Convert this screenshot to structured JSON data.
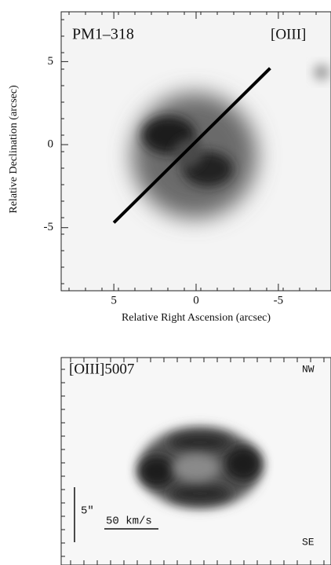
{
  "top_panel": {
    "object": "PM1–318",
    "filter": "[OIII]",
    "x_label": "Relative Right Ascension (arcsec)",
    "y_label": "Relative Declination (arcsec)",
    "xlim": [
      8.2,
      -8.2
    ],
    "ylim": [
      -8.8,
      8
    ],
    "xticks": [
      5,
      0,
      -5
    ],
    "yticks": [
      5,
      0,
      -5
    ],
    "slit": {
      "x": [
        5,
        -4.5
      ],
      "y": [
        -4.7,
        4.6
      ]
    }
  },
  "bottom_panel": {
    "line": "[OIII]5007",
    "top_right": "NW",
    "bottom_right": "SE",
    "spatial_scale": "5″",
    "velocity_scale": "50 km/s"
  }
}
